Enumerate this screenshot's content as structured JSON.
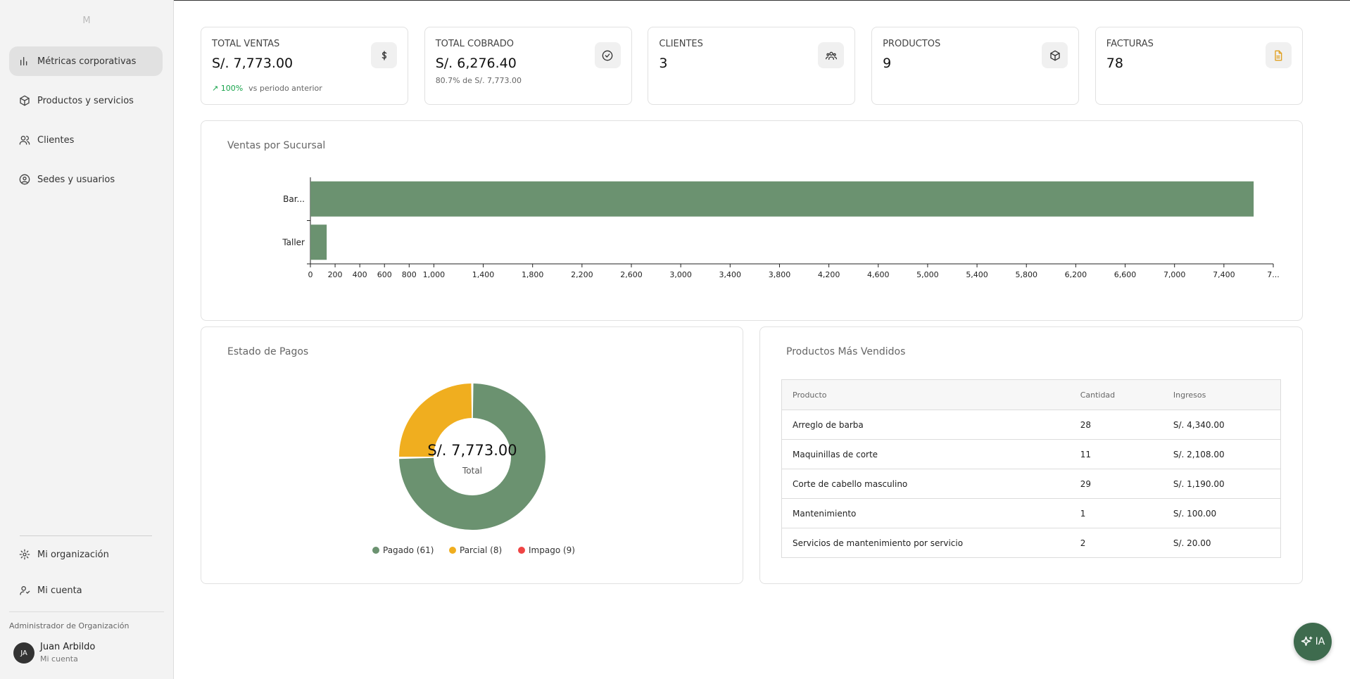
{
  "sidebar": {
    "logo": "M",
    "nav": [
      "Métricas corporativas",
      "Productos y servicios",
      "Clientes",
      "Sedes y usuarios"
    ],
    "bottom_nav": [
      "Mi organización",
      "Mi cuenta"
    ],
    "role": "Administrador de Organización",
    "user": {
      "initials": "JA",
      "name": "Juan Arbildo",
      "link": "Mi cuenta"
    }
  },
  "cards": [
    {
      "label": "TOTAL VENTAS",
      "value": "S/. 7,773.00",
      "change": "↗ 100%",
      "change_note": "vs periodo anterior"
    },
    {
      "label": "TOTAL COBRADO",
      "value": "S/. 6,276.40",
      "note": "80.7% de S/. 7,773.00"
    },
    {
      "label": "CLIENTES",
      "value": "3"
    },
    {
      "label": "PRODUCTOS",
      "value": "9"
    },
    {
      "label": "FACTURAS",
      "value": "78"
    }
  ],
  "chart_data": [
    {
      "type": "bar",
      "orientation": "horizontal",
      "title": "Ventas por Sucursal",
      "categories": [
        "Bar...",
        "Taller"
      ],
      "values": [
        7641,
        132
      ],
      "color": "#6b9270",
      "xlim": [
        0,
        7800
      ],
      "xticks": [
        0,
        200,
        400,
        600,
        800,
        {
          "value": 1000,
          "label": "1,000"
        },
        {
          "value": 1400,
          "label": "1,400"
        },
        {
          "value": 1800,
          "label": "1,800"
        },
        {
          "value": 2200,
          "label": "2,200"
        },
        {
          "value": 2600,
          "label": "2,600"
        },
        {
          "value": 3000,
          "label": "3,000"
        },
        {
          "value": 3400,
          "label": "3,400"
        },
        {
          "value": 3800,
          "label": "3,800"
        },
        {
          "value": 4200,
          "label": "4,200"
        },
        {
          "value": 4600,
          "label": "4,600"
        },
        {
          "value": 5000,
          "label": "5,000"
        },
        {
          "value": 5400,
          "label": "5,400"
        },
        {
          "value": 5800,
          "label": "5,800"
        },
        {
          "value": 6200,
          "label": "6,200"
        },
        {
          "value": 6600,
          "label": "6,600"
        },
        {
          "value": 7000,
          "label": "7,000"
        },
        {
          "value": 7400,
          "label": "7,400"
        },
        {
          "value": 7800,
          "label": "7..."
        }
      ]
    },
    {
      "type": "pie",
      "donut": true,
      "title": "Estado de Pagos",
      "categories": [
        "Pagado (61)",
        "Parcial (8)",
        "Impago (9)"
      ],
      "values": [
        5810,
        1963,
        0
      ],
      "colors": [
        "#6b9270",
        "#f0ae1f",
        "#ef4444"
      ],
      "center_value": "S/. 7,773.00",
      "center_label": "Total"
    }
  ],
  "top_products": {
    "title": "Productos Más Vendidos",
    "columns": [
      "Producto",
      "Cantidad",
      "Ingresos"
    ],
    "rows": [
      [
        "Arreglo de barba",
        "28",
        "S/. 4,340.00"
      ],
      [
        "Maquinillas de corte",
        "11",
        "S/. 2,108.00"
      ],
      [
        "Corte de cabello masculino",
        "29",
        "S/. 1,190.00"
      ],
      [
        "Mantenimiento",
        "1",
        "S/. 100.00"
      ],
      [
        "Servicios de mantenimiento por servicio",
        "2",
        "S/. 20.00"
      ]
    ]
  },
  "assistant_button": "IA"
}
